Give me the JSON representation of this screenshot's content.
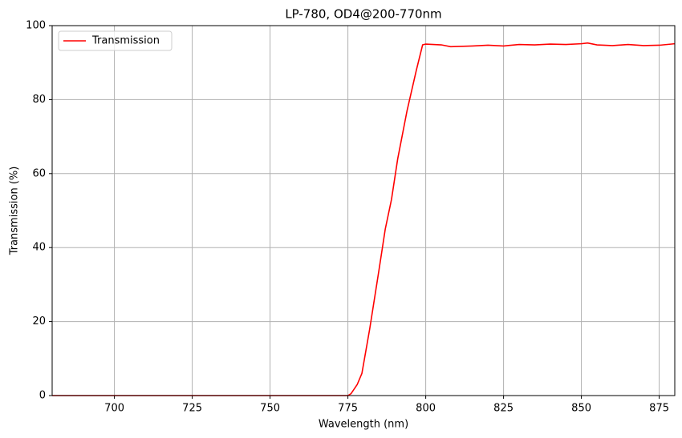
{
  "chart_data": {
    "type": "line",
    "title": "LP-780, OD4@200-770nm",
    "x_label": "Wavelength (nm)",
    "y_label": "Transmission (%)",
    "x": [
      680,
      700,
      725,
      750,
      770,
      775,
      776,
      778,
      779.5,
      782,
      785,
      787,
      789,
      791,
      794,
      797,
      799,
      800,
      805,
      808,
      815,
      820,
      825,
      830,
      835,
      840,
      845,
      850,
      852,
      855,
      860,
      865,
      870,
      875,
      880
    ],
    "series": [
      {
        "name": "Transmission",
        "color": "#ff0000",
        "values": [
          0,
          0,
          0,
          0,
          0,
          0,
          0.5,
          3,
          6,
          18,
          34,
          45,
          53,
          64,
          77,
          88,
          94.8,
          95,
          94.8,
          94.3,
          94.5,
          94.7,
          94.5,
          94.9,
          94.8,
          95,
          94.9,
          95.1,
          95.3,
          94.8,
          94.6,
          94.9,
          94.6,
          94.7,
          95.1
        ]
      }
    ],
    "xlim": [
      680,
      880
    ],
    "ylim": [
      0,
      100
    ],
    "xticks": [
      700,
      725,
      750,
      775,
      800,
      825,
      850,
      875
    ],
    "yticks": [
      0,
      20,
      40,
      60,
      80,
      100
    ],
    "grid": true,
    "legend": "upper left"
  }
}
